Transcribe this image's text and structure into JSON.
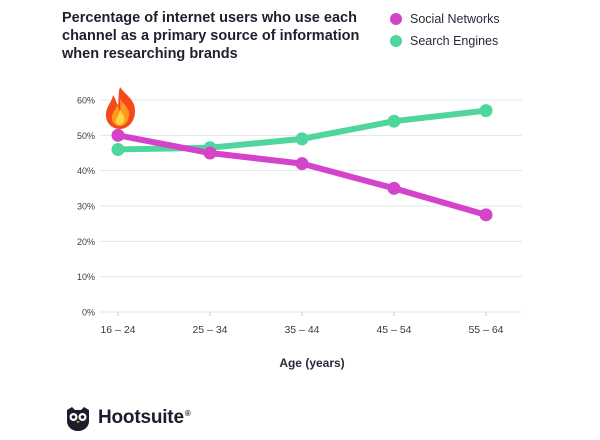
{
  "title": "Percentage of internet users who use each channel as a primary source of information when researching brands",
  "brand": {
    "name": "Hootsuite",
    "reg": "®",
    "logo_icon": "owl-icon"
  },
  "chart_data": {
    "type": "line",
    "title": "Percentage of internet users who use each channel as a primary source of information when researching brands",
    "xlabel": "Age (years)",
    "ylabel": "",
    "categories": [
      "16 – 24",
      "25 – 34",
      "35 – 44",
      "45 – 54",
      "55 – 64"
    ],
    "yticks": [
      "0%",
      "10%",
      "20%",
      "30%",
      "40%",
      "50%",
      "60%"
    ],
    "ylim": [
      0,
      60
    ],
    "grid": true,
    "legend": "top-right",
    "series": [
      {
        "name": "Social Networks",
        "color": "#d443c9",
        "values": [
          50,
          45,
          42,
          35,
          27.5
        ]
      },
      {
        "name": "Search Engines",
        "color": "#4fd69c",
        "values": [
          46,
          46.5,
          49,
          54,
          57
        ]
      }
    ],
    "annotation_icon": "fire-icon"
  },
  "colors": {
    "grid": "#e3e4e8",
    "axis_text": "#3a3a48"
  }
}
